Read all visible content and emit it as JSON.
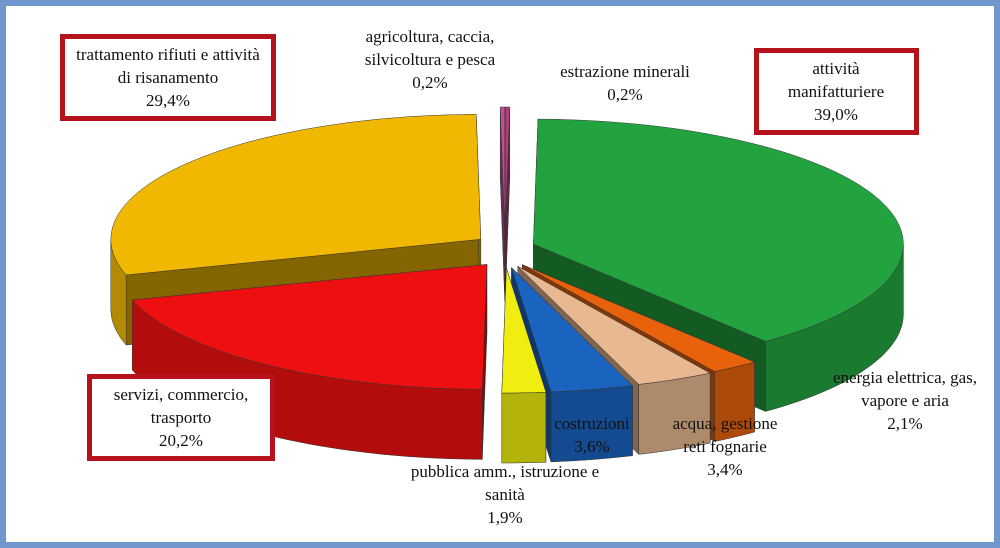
{
  "chart_data": {
    "type": "pie3d",
    "categories": [
      "estrazione minerali",
      "attività manifatturiere",
      "energia elettrica, gas, vapore e aria",
      "acqua, gestione reti fognarie",
      "costruzioni",
      "pubblica amm., istruzione e sanità",
      "servizi, commercio, trasporto",
      "trattamento rifiuti e attività di risanamento",
      "agricoltura, caccia, silvicoltura e pesca"
    ],
    "values": [
      0.2,
      39.0,
      2.1,
      3.4,
      3.6,
      1.9,
      20.2,
      29.4,
      0.2
    ],
    "value_labels": [
      "0,2%",
      "39,0%",
      "2,1%",
      "3,4%",
      "3,6%",
      "1,9%",
      "20,2%",
      "29,4%",
      "0,2%"
    ],
    "colors": [
      "#b0407a",
      "#22a340",
      "#e8620c",
      "#e8b890",
      "#1a64c0",
      "#f0ee10",
      "#ee1010",
      "#f0b800",
      "#c05090"
    ],
    "highlighted": [
      false,
      true,
      false,
      false,
      false,
      false,
      true,
      true,
      false
    ]
  }
}
